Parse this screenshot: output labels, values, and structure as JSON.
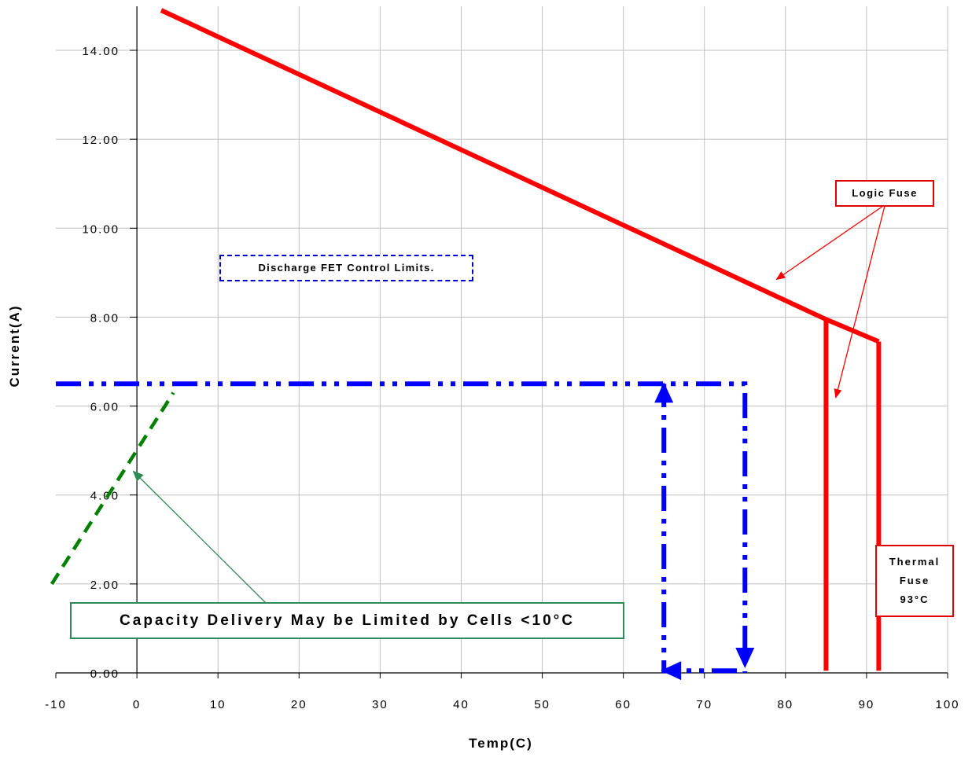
{
  "chart_data": {
    "type": "line",
    "xlabel": "Temp(C)",
    "ylabel": "Current(A)",
    "xlim": [
      -10,
      100
    ],
    "ylim": [
      0,
      15
    ],
    "x_ticks": [
      "-10",
      "0",
      "10",
      "20",
      "30",
      "40",
      "50",
      "60",
      "70",
      "80",
      "90",
      "100"
    ],
    "y_ticks": [
      "0.00",
      "2.00",
      "4.00",
      "6.00",
      "8.00",
      "10.00",
      "12.00",
      "14.00"
    ],
    "grid": true,
    "series": [
      {
        "color": "#ff0000",
        "style": "solid",
        "points": [
          [
            3,
            14.9
          ],
          [
            85,
            7.95
          ],
          [
            91.5,
            7.45
          ]
        ]
      },
      {
        "color": "#ff0000",
        "style": "solid",
        "points": [
          [
            85,
            7.95
          ],
          [
            85,
            0.05
          ]
        ]
      },
      {
        "color": "#ff0000",
        "style": "solid",
        "points": [
          [
            91.5,
            7.45
          ],
          [
            91.5,
            0.05
          ]
        ]
      },
      {
        "color": "#0000ff",
        "style": "dash-dot",
        "points": [
          [
            -10,
            6.5
          ],
          [
            75,
            6.5
          ],
          [
            75,
            0.0
          ]
        ]
      },
      {
        "color": "#0000ff",
        "style": "dash-dot",
        "points": [
          [
            74,
            0.05
          ],
          [
            65,
            0.05
          ],
          [
            65,
            6.5
          ]
        ]
      },
      {
        "color": "#008000",
        "style": "dashed",
        "points": [
          [
            -10.5,
            2.0
          ],
          [
            4.5,
            6.3
          ]
        ]
      }
    ],
    "annotations": [
      {
        "id": "logic",
        "text": "Logic Fuse",
        "color": "#e00000"
      },
      {
        "id": "thermal",
        "lines": [
          "Thermal",
          "Fuse",
          "93°C"
        ],
        "color": "#e00000"
      },
      {
        "id": "discharge",
        "text": "Discharge FET Control Limits.",
        "color": "#0000cc"
      },
      {
        "id": "capacity",
        "text": "Capacity Delivery May be Limited by Cells <10°C",
        "color": "#2e8b57"
      }
    ]
  }
}
